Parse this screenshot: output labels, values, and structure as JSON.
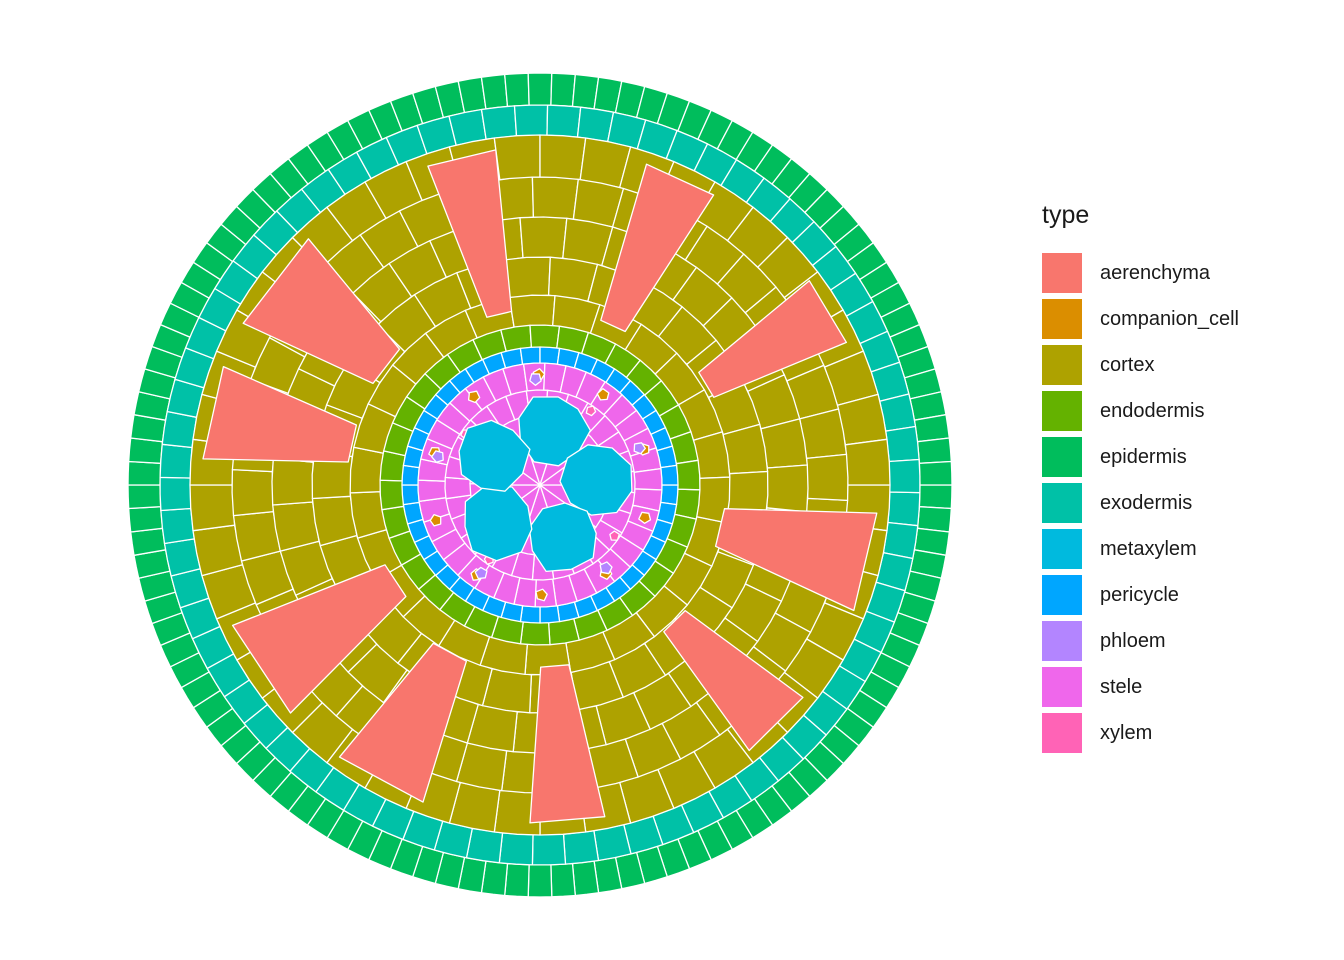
{
  "legend": {
    "title": "type",
    "items": [
      {
        "key": "aerenchyma",
        "label": "aerenchyma",
        "color": "#F8766D"
      },
      {
        "key": "companion_cell",
        "label": "companion_cell",
        "color": "#DB8E00"
      },
      {
        "key": "cortex",
        "label": "cortex",
        "color": "#AEA200"
      },
      {
        "key": "endodermis",
        "label": "endodermis",
        "color": "#64B200"
      },
      {
        "key": "epidermis",
        "label": "epidermis",
        "color": "#00BD5C"
      },
      {
        "key": "exodermis",
        "label": "exodermis",
        "color": "#00C1A7"
      },
      {
        "key": "metaxylem",
        "label": "metaxylem",
        "color": "#00BADE"
      },
      {
        "key": "pericycle",
        "label": "pericycle",
        "color": "#00A6FF"
      },
      {
        "key": "phloem",
        "label": "phloem",
        "color": "#B385FF"
      },
      {
        "key": "stele",
        "label": "stele",
        "color": "#EF67EB"
      },
      {
        "key": "xylem",
        "label": "xylem",
        "color": "#FF63B6"
      }
    ]
  },
  "anatomy": {
    "metaxylem_vessels": 5,
    "aerenchyma_lacunae": 10
  }
}
